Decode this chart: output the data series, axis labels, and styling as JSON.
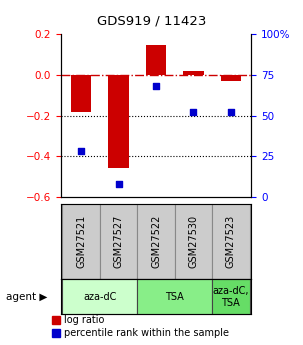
{
  "title": "GDS919 / 11423",
  "samples": [
    "GSM27521",
    "GSM27527",
    "GSM27522",
    "GSM27530",
    "GSM27523"
  ],
  "log_ratios": [
    -0.18,
    -0.46,
    0.15,
    0.02,
    -0.03
  ],
  "percentile_ranks": [
    28,
    8,
    68,
    52,
    52
  ],
  "ylim_left": [
    -0.6,
    0.2
  ],
  "ylim_right": [
    0,
    100
  ],
  "left_yticks": [
    -0.6,
    -0.4,
    -0.2,
    0.0,
    0.2
  ],
  "right_yticks": [
    0,
    25,
    50,
    75,
    100
  ],
  "right_yticklabels": [
    "0",
    "25",
    "50",
    "75",
    "100%"
  ],
  "bar_color": "#cc0000",
  "scatter_color": "#0000cc",
  "dashed_line_color": "#cc0000",
  "dotted_line_color": "#000000",
  "agent_groups": [
    {
      "label": "aza-dC",
      "samples": [
        0,
        1
      ],
      "color": "#ccffcc"
    },
    {
      "label": "TSA",
      "samples": [
        2,
        3
      ],
      "color": "#88ee88"
    },
    {
      "label": "aza-dC,\nTSA",
      "samples": [
        4
      ],
      "color": "#66dd66"
    }
  ],
  "sample_box_color": "#cccccc",
  "legend_log_ratio_label": "log ratio",
  "legend_percentile_label": "percentile rank within the sample",
  "bar_width": 0.55
}
